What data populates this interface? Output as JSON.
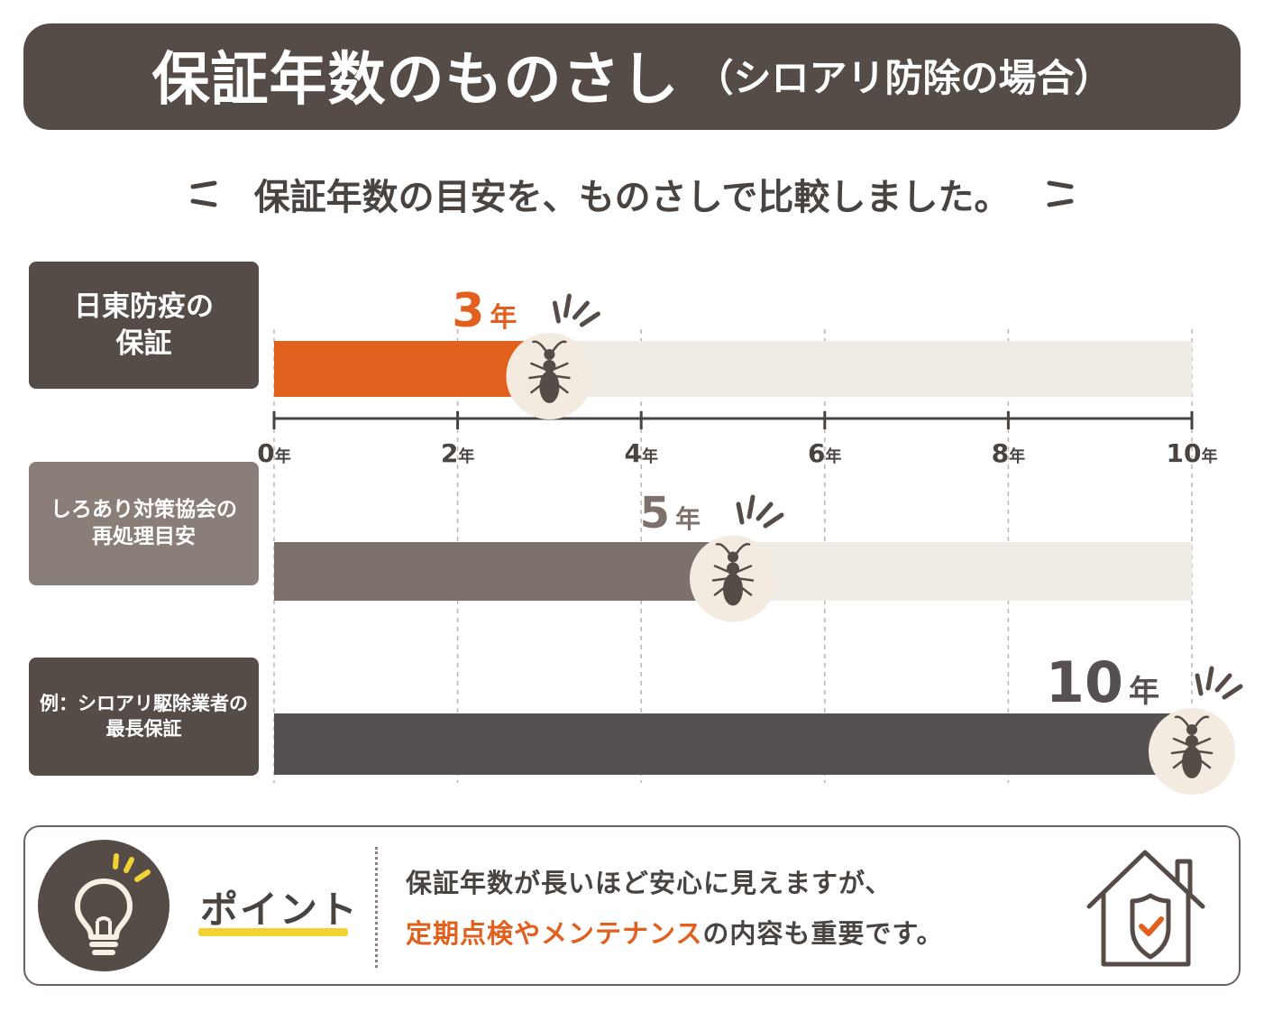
{
  "title": {
    "main": "保証年数のものさし",
    "sub": "（シロアリ防除の場合）"
  },
  "subtitle": "保証年数の目安を、ものさしで比較しました。",
  "rows": [
    {
      "label_line1": "日東防疫の",
      "label_line2": "保証"
    },
    {
      "label_line1": "しろあり対策協会の",
      "label_line2": "再処理目安"
    },
    {
      "label_line1": "例：シロアリ駆除業者の",
      "label_line2": "最長保証"
    }
  ],
  "chart_data": {
    "type": "bar",
    "orientation": "horizontal",
    "categories": [
      "日東防疫の保証",
      "しろあり対策協会の再処理目安",
      "例：シロアリ駆除業者の最長保証"
    ],
    "values": [
      3,
      5,
      10
    ],
    "value_labels": [
      "3年",
      "5年",
      "10年"
    ],
    "xlim": [
      0,
      10
    ],
    "x_ticks": [
      0,
      2,
      4,
      6,
      8,
      10
    ],
    "tick_labels": [
      "0年",
      "2年",
      "4年",
      "6年",
      "8年",
      "10年"
    ],
    "grid": true,
    "colors": {
      "row1": "#e2601e",
      "row2": "#7d716b",
      "row3": "#575050",
      "track": "#f0ebe5",
      "marker_circle": "#f3ebe0",
      "termite": "#554c48"
    }
  },
  "label_colors": [
    "#554c48",
    "#8a7f78",
    "#554c48"
  ],
  "point": {
    "label": "ポイント",
    "line1": "保証年数が長いほど安心に見えますが、",
    "line2_accent": "定期点検やメンテナンス",
    "line2_rest": "の内容も重要です。"
  }
}
